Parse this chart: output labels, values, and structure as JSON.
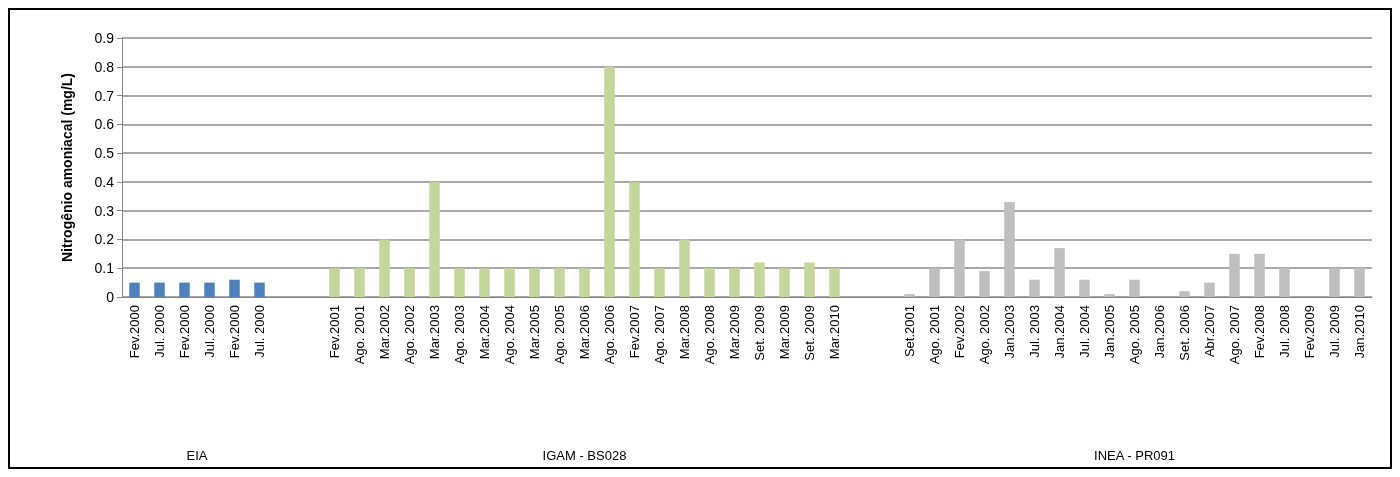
{
  "chart_data": {
    "type": "bar",
    "ylabel": "Nitrogênio amoniacal (mg/L)",
    "categories": [
      "Fev.2000",
      "Jul. 2000",
      "Fev.2000",
      "Jul. 2000",
      "Fev.2000",
      "Jul. 2000",
      null,
      null,
      "Fev.2001",
      "Ago. 2001",
      "Mar.2002",
      "Ago. 2002",
      "Mar.2003",
      "Ago. 2003",
      "Mar.2004",
      "Ago. 2004",
      "Mar.2005",
      "Ago. 2005",
      "Mar.2006",
      "Ago. 2006",
      "Fev.2007",
      "Ago. 2007",
      "Mar.2008",
      "Ago. 2008",
      "Mar.2009",
      "Set. 2009",
      "Mar.2009",
      "Set. 2009",
      "Mar.2010",
      null,
      null,
      "Set.2001",
      "Ago. 2001",
      "Fev.2002",
      "Ago. 2002",
      "Jan.2003",
      "Jul. 2003",
      "Jan.2004",
      "Jul. 2004",
      "Jan.2005",
      "Ago. 2005",
      "Jan.2006",
      "Set. 2006",
      "Abr.2007",
      "Ago. 2007",
      "Fev.2008",
      "Jul. 2008",
      "Fev.2009",
      "Jul. 2009",
      "Jan.2010"
    ],
    "series": [
      {
        "color": "#4f81bd",
        "values": [
          0.05,
          0.05,
          0.05,
          0.05,
          0.06,
          0.05,
          null,
          null,
          null,
          null,
          null,
          null,
          null,
          null,
          null,
          null,
          null,
          null,
          null,
          null,
          null,
          null,
          null,
          null,
          null,
          null,
          null,
          null,
          null,
          null,
          null,
          null,
          null,
          null,
          null,
          null,
          null,
          null,
          null,
          null,
          null,
          null,
          null,
          null,
          null,
          null,
          null,
          null,
          null,
          null
        ]
      },
      {
        "color": "#c3d69b",
        "values": [
          null,
          null,
          null,
          null,
          null,
          null,
          null,
          null,
          0.1,
          0.1,
          0.2,
          0.1,
          0.4,
          0.1,
          0.1,
          0.1,
          0.1,
          0.1,
          0.1,
          0.8,
          0.4,
          0.1,
          0.2,
          0.1,
          0.1,
          0.12,
          0.1,
          0.12,
          0.1,
          null,
          null,
          null,
          null,
          null,
          null,
          null,
          null,
          null,
          null,
          null,
          null,
          null,
          null,
          null,
          null,
          null,
          null,
          null,
          null,
          null
        ]
      },
      {
        "color": "#bfbfbf",
        "values": [
          null,
          null,
          null,
          null,
          null,
          null,
          null,
          null,
          null,
          null,
          null,
          null,
          null,
          null,
          null,
          null,
          null,
          null,
          null,
          null,
          null,
          null,
          null,
          null,
          null,
          null,
          null,
          null,
          null,
          null,
          null,
          0.01,
          0.1,
          0.2,
          0.09,
          0.33,
          0.06,
          0.17,
          0.06,
          0.01,
          0.06,
          null,
          0.02,
          0.05,
          0.15,
          0.15,
          0.1,
          null,
          0.1,
          0.1
        ]
      }
    ],
    "ylim": [
      0,
      0.9
    ],
    "yticks": [
      0,
      0.1,
      0.2,
      0.3,
      0.4,
      0.5,
      0.6,
      0.7,
      0.8,
      0.9
    ],
    "grid": "y",
    "legend": false,
    "annotations": [
      "EIA",
      "IGAM - BS028",
      "INEA - PR091"
    ]
  }
}
